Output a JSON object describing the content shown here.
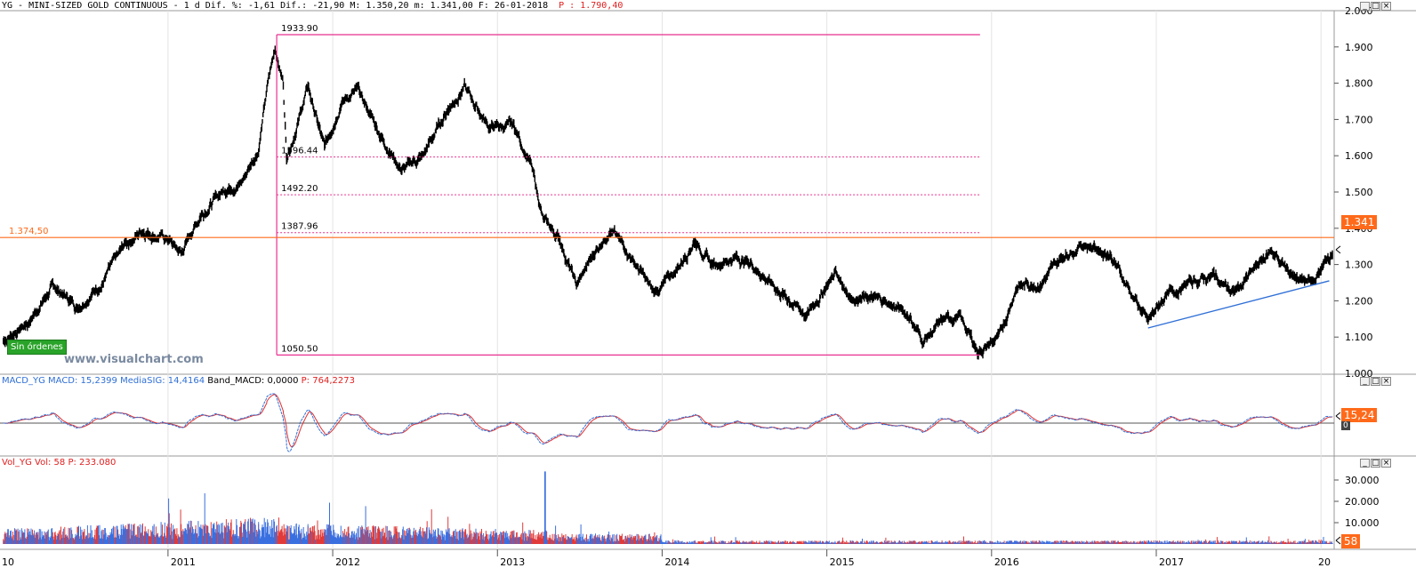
{
  "header": {
    "symbol_line": "YG - MINI-SIZED GOLD CONTINUOUS -  1 d Dif. %: -1,61 Dif.: -21,90 M: 1.350,20 m: 1.341,00 F: 26-01-2018",
    "p_label": "P : 1.790,40"
  },
  "macd_header": {
    "name": "MACD_YG",
    "macd": "MACD: 15,2399",
    "signal": "MediaSIG: 14,4164",
    "band": "Band_MACD: 0,0000",
    "p": "P: 764,2273"
  },
  "vol_header": {
    "name": "Vol_YG",
    "vol": "Vol: 58",
    "p": "P: 233.080"
  },
  "labels": {
    "sin_ordenes": "Sin órdenes",
    "watermark": "www.visualchart.com",
    "price_flag": "1.341",
    "macd_flag": "15,24",
    "macd_zero": "0",
    "vol_flag": "58",
    "h_line_label": "1.374,50"
  },
  "colors": {
    "price_line": "#ff6a1a",
    "fib": "#e8318f",
    "trend": "#2f6fd6",
    "macd": "#2f6fd6",
    "signal": "#e03030",
    "vol_up": "#3a6fe0",
    "vol_down": "#e03a3a"
  },
  "chart_data": [
    {
      "type": "line",
      "subtype": "ohlc-bars",
      "title": "YG - MINI-SIZED GOLD CONTINUOUS - 1 d",
      "x_axis": [
        "2011",
        "2012",
        "2013",
        "2014",
        "2015",
        "2016",
        "2017"
      ],
      "x_partial_labels": [
        "10",
        "20"
      ],
      "y_ticks": [
        "1.100",
        "1.200",
        "1.300",
        "1.400",
        "1.500",
        "1.600",
        "1.700",
        "1.800",
        "1.900"
      ],
      "y_partial_top": "2.000",
      "y_partial_bottom": "1.000",
      "ylim": [
        1000,
        2000
      ],
      "anchors": [
        {
          "t": 2010.0,
          "v": 1090
        },
        {
          "t": 2010.15,
          "v": 1140
        },
        {
          "t": 2010.3,
          "v": 1240
        },
        {
          "t": 2010.45,
          "v": 1185
        },
        {
          "t": 2010.6,
          "v": 1250
        },
        {
          "t": 2010.75,
          "v": 1360
        },
        {
          "t": 2010.85,
          "v": 1395
        },
        {
          "t": 2011.0,
          "v": 1370
        },
        {
          "t": 2011.08,
          "v": 1330
        },
        {
          "t": 2011.2,
          "v": 1440
        },
        {
          "t": 2011.35,
          "v": 1510
        },
        {
          "t": 2011.45,
          "v": 1530
        },
        {
          "t": 2011.55,
          "v": 1620
        },
        {
          "t": 2011.6,
          "v": 1780
        },
        {
          "t": 2011.65,
          "v": 1900
        },
        {
          "t": 2011.7,
          "v": 1800
        },
        {
          "t": 2011.72,
          "v": 1600
        },
        {
          "t": 2011.78,
          "v": 1680
        },
        {
          "t": 2011.85,
          "v": 1790
        },
        {
          "t": 2011.95,
          "v": 1620
        },
        {
          "t": 2012.05,
          "v": 1750
        },
        {
          "t": 2012.15,
          "v": 1780
        },
        {
          "t": 2012.3,
          "v": 1650
        },
        {
          "t": 2012.42,
          "v": 1560
        },
        {
          "t": 2012.55,
          "v": 1600
        },
        {
          "t": 2012.7,
          "v": 1730
        },
        {
          "t": 2012.8,
          "v": 1790
        },
        {
          "t": 2012.95,
          "v": 1680
        },
        {
          "t": 2013.1,
          "v": 1680
        },
        {
          "t": 2013.2,
          "v": 1580
        },
        {
          "t": 2013.28,
          "v": 1420
        },
        {
          "t": 2013.38,
          "v": 1370
        },
        {
          "t": 2013.48,
          "v": 1240
        },
        {
          "t": 2013.6,
          "v": 1340
        },
        {
          "t": 2013.68,
          "v": 1400
        },
        {
          "t": 2013.8,
          "v": 1330
        },
        {
          "t": 2013.95,
          "v": 1220
        },
        {
          "t": 2014.08,
          "v": 1280
        },
        {
          "t": 2014.2,
          "v": 1370
        },
        {
          "t": 2014.3,
          "v": 1300
        },
        {
          "t": 2014.45,
          "v": 1320
        },
        {
          "t": 2014.55,
          "v": 1300
        },
        {
          "t": 2014.7,
          "v": 1230
        },
        {
          "t": 2014.88,
          "v": 1160
        },
        {
          "t": 2015.05,
          "v": 1280
        },
        {
          "t": 2015.15,
          "v": 1210
        },
        {
          "t": 2015.35,
          "v": 1200
        },
        {
          "t": 2015.5,
          "v": 1160
        },
        {
          "t": 2015.58,
          "v": 1090
        },
        {
          "t": 2015.7,
          "v": 1140
        },
        {
          "t": 2015.8,
          "v": 1160
        },
        {
          "t": 2015.92,
          "v": 1060
        },
        {
          "t": 2016.05,
          "v": 1100
        },
        {
          "t": 2016.15,
          "v": 1240
        },
        {
          "t": 2016.3,
          "v": 1250
        },
        {
          "t": 2016.45,
          "v": 1330
        },
        {
          "t": 2016.55,
          "v": 1360
        },
        {
          "t": 2016.72,
          "v": 1330
        },
        {
          "t": 2016.8,
          "v": 1260
        },
        {
          "t": 2016.95,
          "v": 1140
        },
        {
          "t": 2017.05,
          "v": 1210
        },
        {
          "t": 2017.2,
          "v": 1250
        },
        {
          "t": 2017.35,
          "v": 1270
        },
        {
          "t": 2017.47,
          "v": 1220
        },
        {
          "t": 2017.55,
          "v": 1260
        },
        {
          "t": 2017.7,
          "v": 1340
        },
        {
          "t": 2017.8,
          "v": 1280
        },
        {
          "t": 2017.95,
          "v": 1245
        },
        {
          "t": 2018.07,
          "v": 1341
        }
      ],
      "fib_levels": [
        {
          "label": "1933.90",
          "v": 1933.9
        },
        {
          "label": "1596.44",
          "v": 1596.44
        },
        {
          "label": "1492.20",
          "v": 1492.2
        },
        {
          "label": "1387.96",
          "v": 1387.96
        },
        {
          "label": "1050.50",
          "v": 1050.5
        }
      ],
      "h_line": {
        "label": "1.374,50",
        "v": 1374.5
      },
      "trendline": [
        {
          "t": 2016.95,
          "v": 1125
        },
        {
          "t": 2018.05,
          "v": 1255
        }
      ],
      "last": 1341
    },
    {
      "type": "line",
      "title": "MACD_YG",
      "series": [
        {
          "name": "MACD",
          "last": 15.2399
        },
        {
          "name": "MediaSIG",
          "last": 14.4164
        }
      ]
    },
    {
      "type": "bar",
      "title": "Vol_YG",
      "y_ticks": [
        "10.000",
        "20.000",
        "30.000"
      ],
      "ylim": [
        0,
        35000
      ],
      "last": 58
    }
  ]
}
